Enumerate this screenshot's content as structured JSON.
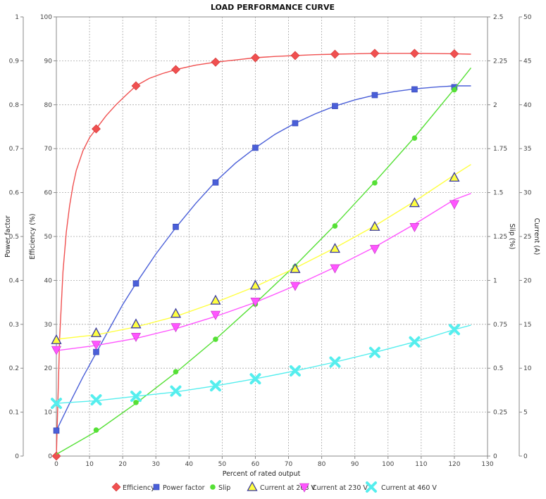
{
  "chart_data": {
    "type": "line",
    "title": "LOAD PERFORMANCE CURVE",
    "xlabel": "Percent of rated output",
    "xlim": [
      0,
      130
    ],
    "xticks": [
      0,
      10,
      20,
      30,
      40,
      50,
      60,
      70,
      80,
      90,
      100,
      110,
      120,
      130
    ],
    "grid": true,
    "legend_position": "bottom",
    "axes": {
      "power_factor": {
        "label": "Power factor",
        "range": [
          0,
          1
        ],
        "ticks": [
          0,
          0.1,
          0.2,
          0.3,
          0.4,
          0.5,
          0.6,
          0.7,
          0.8,
          0.9,
          1
        ]
      },
      "efficiency": {
        "label": "Efficiency (%)",
        "range": [
          0,
          100
        ],
        "ticks": [
          0,
          10,
          20,
          30,
          40,
          50,
          60,
          70,
          80,
          90,
          100
        ]
      },
      "slip": {
        "label": "Slip (%)",
        "range": [
          0,
          2.5
        ],
        "ticks": [
          0,
          0.25,
          0.5,
          0.75,
          1,
          1.25,
          1.5,
          1.75,
          2,
          2.25,
          2.5
        ]
      },
      "current": {
        "label": "Current (A)",
        "range": [
          0,
          50
        ],
        "ticks": [
          0,
          5,
          10,
          15,
          20,
          25,
          30,
          35,
          40,
          45,
          50
        ]
      }
    },
    "series": [
      {
        "name": "Efficiency",
        "axis": "efficiency",
        "color": "#f05050",
        "marker": "diamond",
        "points": [
          [
            0,
            0
          ],
          [
            12,
            74.5
          ],
          [
            24,
            84.3
          ],
          [
            36,
            88
          ],
          [
            48,
            89.7
          ],
          [
            60,
            90.7
          ],
          [
            72,
            91.2
          ],
          [
            84,
            91.5
          ],
          [
            96,
            91.7
          ],
          [
            108,
            91.7
          ],
          [
            120,
            91.6
          ]
        ],
        "curve": [
          [
            0,
            0
          ],
          [
            1,
            27
          ],
          [
            2,
            42
          ],
          [
            3,
            51
          ],
          [
            4,
            57
          ],
          [
            5,
            61.5
          ],
          [
            6,
            65
          ],
          [
            8,
            69.5
          ],
          [
            10,
            72.5
          ],
          [
            12,
            74.5
          ],
          [
            15,
            77.5
          ],
          [
            18,
            80
          ],
          [
            21,
            82.2
          ],
          [
            24,
            84.3
          ],
          [
            28,
            86
          ],
          [
            32,
            87.1
          ],
          [
            36,
            88
          ],
          [
            42,
            89
          ],
          [
            48,
            89.7
          ],
          [
            54,
            90.2
          ],
          [
            60,
            90.7
          ],
          [
            66,
            91
          ],
          [
            72,
            91.2
          ],
          [
            78,
            91.4
          ],
          [
            84,
            91.5
          ],
          [
            90,
            91.6
          ],
          [
            96,
            91.7
          ],
          [
            102,
            91.7
          ],
          [
            108,
            91.7
          ],
          [
            114,
            91.65
          ],
          [
            120,
            91.6
          ],
          [
            125,
            91.5
          ]
        ]
      },
      {
        "name": "Power factor",
        "axis": "power_factor",
        "color": "#4a5fd8",
        "marker": "square",
        "points": [
          [
            0,
            0.058
          ],
          [
            12,
            0.237
          ],
          [
            24,
            0.393
          ],
          [
            36,
            0.522
          ],
          [
            48,
            0.623
          ],
          [
            60,
            0.702
          ],
          [
            72,
            0.758
          ],
          [
            84,
            0.797
          ],
          [
            96,
            0.822
          ],
          [
            108,
            0.835
          ],
          [
            120,
            0.84
          ]
        ],
        "curve": [
          [
            0,
            0.058
          ],
          [
            4,
            0.12
          ],
          [
            8,
            0.18
          ],
          [
            12,
            0.235
          ],
          [
            16,
            0.29
          ],
          [
            20,
            0.345
          ],
          [
            24,
            0.393
          ],
          [
            30,
            0.46
          ],
          [
            36,
            0.52
          ],
          [
            42,
            0.575
          ],
          [
            48,
            0.625
          ],
          [
            54,
            0.667
          ],
          [
            60,
            0.702
          ],
          [
            66,
            0.733
          ],
          [
            72,
            0.758
          ],
          [
            78,
            0.779
          ],
          [
            84,
            0.797
          ],
          [
            90,
            0.811
          ],
          [
            96,
            0.822
          ],
          [
            102,
            0.83
          ],
          [
            108,
            0.836
          ],
          [
            114,
            0.84
          ],
          [
            120,
            0.843
          ],
          [
            125,
            0.843
          ]
        ]
      },
      {
        "name": "Slip",
        "axis": "slip",
        "color": "#55e035",
        "marker": "circle",
        "points": [
          [
            12,
            0.148
          ],
          [
            24,
            0.305
          ],
          [
            36,
            0.48
          ],
          [
            48,
            0.665
          ],
          [
            60,
            0.865
          ],
          [
            72,
            1.078
          ],
          [
            84,
            1.31
          ],
          [
            96,
            1.555
          ],
          [
            108,
            1.81
          ],
          [
            120,
            2.085
          ]
        ],
        "curve": [
          [
            0,
            0.01
          ],
          [
            12,
            0.14
          ],
          [
            24,
            0.3
          ],
          [
            36,
            0.475
          ],
          [
            48,
            0.665
          ],
          [
            60,
            0.87
          ],
          [
            72,
            1.085
          ],
          [
            84,
            1.315
          ],
          [
            96,
            1.56
          ],
          [
            108,
            1.815
          ],
          [
            120,
            2.09
          ],
          [
            125,
            2.21
          ]
        ]
      },
      {
        "name": "Current at 208 V",
        "axis": "current",
        "color": "#ffff40",
        "marker": "triangle-up",
        "points": [
          [
            0,
            13.2
          ],
          [
            12,
            14
          ],
          [
            24,
            15
          ],
          [
            36,
            16.2
          ],
          [
            48,
            17.7
          ],
          [
            60,
            19.4
          ],
          [
            72,
            21.3
          ],
          [
            84,
            23.6
          ],
          [
            96,
            26.1
          ],
          [
            108,
            28.8
          ],
          [
            120,
            31.7
          ]
        ],
        "curve": [
          [
            0,
            13.3
          ],
          [
            12,
            13.8
          ],
          [
            24,
            14.7
          ],
          [
            36,
            15.9
          ],
          [
            48,
            17.5
          ],
          [
            60,
            19.3
          ],
          [
            72,
            21.4
          ],
          [
            84,
            23.7
          ],
          [
            96,
            26.2
          ],
          [
            108,
            29
          ],
          [
            120,
            32
          ],
          [
            125,
            33.2
          ]
        ]
      },
      {
        "name": "Current at 230 V",
        "axis": "current",
        "color": "#ff55ff",
        "marker": "triangle-down",
        "points": [
          [
            0,
            12.1
          ],
          [
            12,
            12.7
          ],
          [
            24,
            13.6
          ],
          [
            36,
            14.7
          ],
          [
            48,
            16.1
          ],
          [
            60,
            17.6
          ],
          [
            72,
            19.4
          ],
          [
            84,
            21.4
          ],
          [
            96,
            23.6
          ],
          [
            108,
            26.1
          ],
          [
            120,
            28.7
          ]
        ],
        "curve": [
          [
            0,
            12
          ],
          [
            12,
            12.6
          ],
          [
            24,
            13.4
          ],
          [
            36,
            14.5
          ],
          [
            48,
            15.9
          ],
          [
            60,
            17.5
          ],
          [
            72,
            19.4
          ],
          [
            84,
            21.5
          ],
          [
            96,
            23.8
          ],
          [
            108,
            26.4
          ],
          [
            120,
            29.2
          ],
          [
            125,
            29.9
          ]
        ]
      },
      {
        "name": "Current at 460 V",
        "axis": "current",
        "color": "#55eeee",
        "marker": "x",
        "points": [
          [
            0,
            6
          ],
          [
            12,
            6.4
          ],
          [
            24,
            6.8
          ],
          [
            36,
            7.4
          ],
          [
            48,
            8
          ],
          [
            60,
            8.8
          ],
          [
            72,
            9.7
          ],
          [
            84,
            10.7
          ],
          [
            96,
            11.8
          ],
          [
            108,
            13
          ],
          [
            120,
            14.4
          ]
        ],
        "curve": [
          [
            0,
            6
          ],
          [
            12,
            6.3
          ],
          [
            24,
            6.8
          ],
          [
            36,
            7.3
          ],
          [
            48,
            8
          ],
          [
            60,
            8.8
          ],
          [
            72,
            9.7
          ],
          [
            84,
            10.7
          ],
          [
            96,
            11.8
          ],
          [
            108,
            13
          ],
          [
            120,
            14.4
          ],
          [
            125,
            14.9
          ]
        ]
      }
    ]
  }
}
